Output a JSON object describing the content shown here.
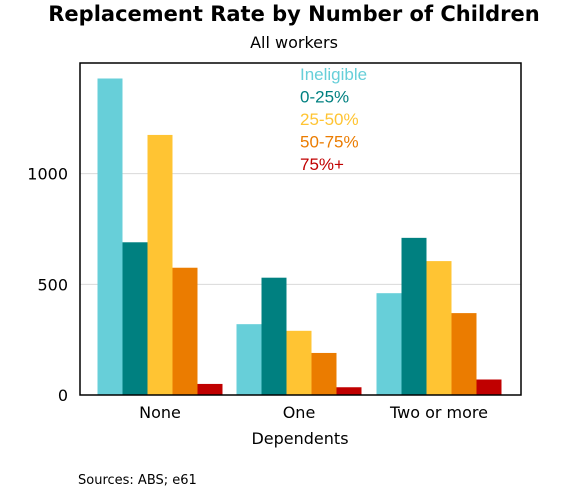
{
  "chart_data": {
    "type": "bar",
    "title": "Replacement Rate by Number of Children",
    "subtitle": "All workers",
    "xlabel": "Dependents",
    "ylabel": "",
    "categories": [
      "None",
      "One",
      "Two or more"
    ],
    "series": [
      {
        "name": "Ineligible",
        "color": "#67cfd9",
        "values": [
          1430,
          320,
          460
        ]
      },
      {
        "name": "0-25%",
        "color": "#008080",
        "values": [
          690,
          530,
          710
        ]
      },
      {
        "name": "25-50%",
        "color": "#ffc433",
        "values": [
          1175,
          290,
          605
        ]
      },
      {
        "name": "50-75%",
        "color": "#eb7c00",
        "values": [
          575,
          190,
          370
        ]
      },
      {
        "name": "75%+",
        "color": "#c00000",
        "values": [
          50,
          35,
          70
        ]
      }
    ],
    "ylim": [
      0,
      1500
    ],
    "yticks": [
      0,
      500,
      1000
    ],
    "grid": true,
    "legend_position": "top-center"
  },
  "source_note": "Sources: ABS; e61"
}
